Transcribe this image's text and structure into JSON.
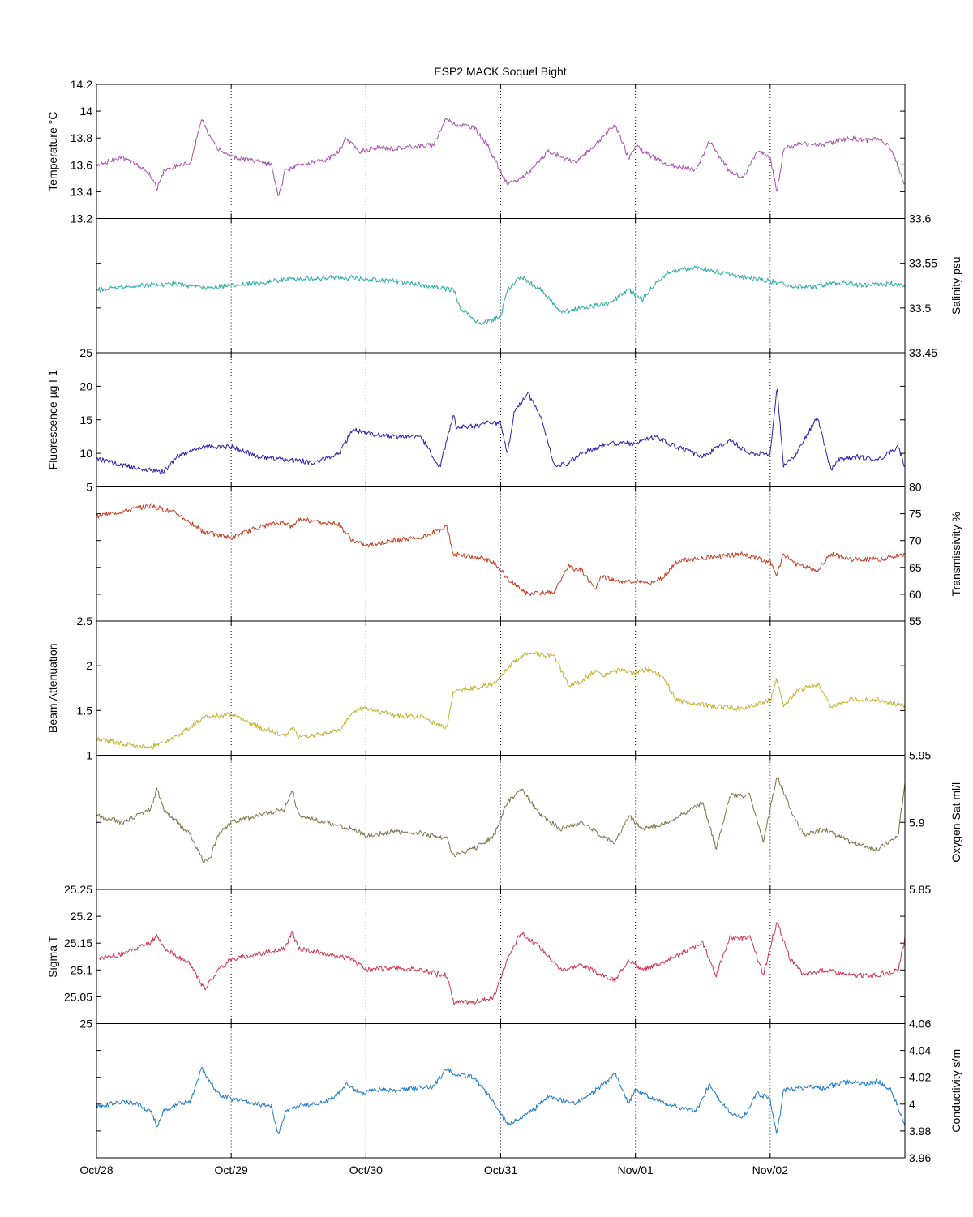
{
  "title": "ESP2 MACK  Soquel Bight",
  "chart_data": {
    "type": "line",
    "title": "ESP2 MACK  Soquel Bight",
    "x_ticks": [
      "Oct/28",
      "Oct/29",
      "Oct/30",
      "Oct/31",
      "Nov/01",
      "Nov/02"
    ],
    "xlim": [
      "Oct/28",
      "Nov/03"
    ],
    "grid": "vertical dotted at day ticks",
    "panels": [
      {
        "name": "Temperature °C",
        "label": "Temperature °C",
        "axis_side": "left",
        "color": "#a84fb0",
        "ylim": [
          13.2,
          14.2
        ],
        "yticks": [
          13.2,
          13.4,
          13.6,
          13.8,
          14,
          14.2
        ],
        "ytick_labels": [
          "13.2",
          "13.4",
          "13.6",
          "13.8",
          "14",
          "14.2"
        ],
        "x": [
          0.0,
          0.1,
          0.2,
          0.3,
          0.4,
          0.45,
          0.5,
          0.6,
          0.7,
          0.78,
          0.82,
          0.9,
          1.0,
          1.1,
          1.2,
          1.3,
          1.35,
          1.4,
          1.5,
          1.6,
          1.7,
          1.8,
          1.85,
          1.95,
          2.05,
          2.1,
          2.2,
          2.3,
          2.4,
          2.5,
          2.6,
          2.65,
          2.7,
          2.8,
          2.9,
          3.0,
          3.05,
          3.15,
          3.25,
          3.35,
          3.45,
          3.55,
          3.65,
          3.7,
          3.75,
          3.85,
          3.95,
          4.0,
          4.05,
          4.15,
          4.25,
          4.35,
          4.45,
          4.55,
          4.65,
          4.7,
          4.8,
          4.9,
          5.0,
          5.05,
          5.1,
          5.2,
          5.3,
          5.4,
          5.5,
          5.6,
          5.7,
          5.8,
          5.9,
          6.0
        ],
        "y": [
          13.6,
          13.63,
          13.65,
          13.6,
          13.52,
          13.42,
          13.55,
          13.6,
          13.62,
          13.95,
          13.85,
          13.72,
          13.66,
          13.64,
          13.62,
          13.6,
          13.35,
          13.55,
          13.6,
          13.62,
          13.63,
          13.7,
          13.8,
          13.7,
          13.72,
          13.73,
          13.72,
          13.73,
          13.74,
          13.75,
          13.95,
          13.9,
          13.9,
          13.88,
          13.75,
          13.55,
          13.45,
          13.5,
          13.58,
          13.7,
          13.66,
          13.62,
          13.7,
          13.75,
          13.8,
          13.9,
          13.65,
          13.75,
          13.7,
          13.65,
          13.6,
          13.58,
          13.56,
          13.78,
          13.62,
          13.55,
          13.5,
          13.7,
          13.66,
          13.4,
          13.72,
          13.75,
          13.76,
          13.75,
          13.78,
          13.8,
          13.78,
          13.8,
          13.72,
          13.45
        ]
      },
      {
        "name": "Salinity psu",
        "label": "Salinity psu",
        "axis_side": "right",
        "color": "#2aa9a9",
        "ylim": [
          33.45,
          33.6
        ],
        "yticks": [
          33.45,
          33.5,
          33.55,
          33.6
        ],
        "ytick_labels": [
          "33.45",
          "33.5",
          "33.55",
          "33.6"
        ],
        "x": [
          0.0,
          0.3,
          0.6,
          0.8,
          1.0,
          1.3,
          1.5,
          1.8,
          2.0,
          2.2,
          2.4,
          2.65,
          2.7,
          2.85,
          3.0,
          3.05,
          3.15,
          3.3,
          3.45,
          3.6,
          3.8,
          3.95,
          4.05,
          4.15,
          4.25,
          4.45,
          4.6,
          4.8,
          5.0,
          5.15,
          5.3,
          5.5,
          5.7,
          5.9,
          6.0
        ],
        "y": [
          33.52,
          33.525,
          33.527,
          33.522,
          33.525,
          33.53,
          33.533,
          33.534,
          33.532,
          33.53,
          33.526,
          33.52,
          33.5,
          33.482,
          33.49,
          33.52,
          33.535,
          33.52,
          33.495,
          33.5,
          33.505,
          33.52,
          33.51,
          33.528,
          33.54,
          33.546,
          33.54,
          33.535,
          33.53,
          33.525,
          33.523,
          33.528,
          33.525,
          33.527,
          33.525
        ]
      },
      {
        "name": "Fluorescence µg l-1",
        "label": "Fluorescence µg l-1",
        "axis_side": "left",
        "color": "#2a1eb0",
        "ylim": [
          5,
          25
        ],
        "yticks": [
          5,
          10,
          15,
          20,
          25
        ],
        "ytick_labels": [
          "5",
          "10",
          "15",
          "20",
          "25"
        ],
        "x": [
          0.0,
          0.2,
          0.4,
          0.5,
          0.6,
          0.8,
          1.0,
          1.2,
          1.4,
          1.5,
          1.6,
          1.8,
          1.9,
          2.0,
          2.2,
          2.4,
          2.55,
          2.65,
          2.67,
          2.8,
          2.9,
          3.0,
          3.05,
          3.1,
          3.2,
          3.3,
          3.4,
          3.5,
          3.6,
          3.8,
          4.0,
          4.15,
          4.3,
          4.5,
          4.7,
          4.85,
          5.0,
          5.05,
          5.1,
          5.2,
          5.35,
          5.45,
          5.5,
          5.65,
          5.8,
          5.95,
          6.0
        ],
        "y": [
          9.2,
          8.2,
          7.5,
          7.2,
          9.5,
          11.0,
          11.0,
          9.5,
          9.0,
          9.0,
          8.5,
          10.0,
          13.5,
          13.0,
          12.5,
          12.5,
          8.0,
          16.0,
          14.0,
          14.0,
          14.5,
          14.5,
          10.0,
          16.0,
          19.0,
          15.5,
          8.0,
          8.5,
          10.0,
          11.5,
          11.5,
          12.5,
          11.0,
          9.5,
          12.0,
          10.0,
          10.0,
          20.0,
          8.0,
          10.0,
          15.5,
          7.5,
          9.0,
          9.5,
          9.0,
          11.0,
          8.0
        ]
      },
      {
        "name": "Transmissivity %",
        "label": "Transmissivity %",
        "axis_side": "right",
        "color": "#c43a1e",
        "ylim": [
          55,
          80
        ],
        "yticks": [
          55,
          60,
          65,
          70,
          75,
          80
        ],
        "ytick_labels": [
          "55",
          "60",
          "65",
          "70",
          "75",
          "80"
        ],
        "x": [
          0.0,
          0.2,
          0.4,
          0.6,
          0.8,
          1.0,
          1.2,
          1.4,
          1.45,
          1.5,
          1.8,
          1.9,
          2.0,
          2.2,
          2.4,
          2.6,
          2.65,
          2.8,
          2.95,
          3.05,
          3.2,
          3.4,
          3.5,
          3.6,
          3.7,
          3.75,
          3.9,
          4.0,
          4.1,
          4.2,
          4.3,
          4.4,
          4.6,
          4.8,
          5.0,
          5.05,
          5.1,
          5.2,
          5.35,
          5.45,
          5.6,
          5.8,
          6.0
        ],
        "y": [
          74.5,
          75.5,
          76.5,
          75.0,
          71.5,
          70.5,
          72.5,
          73.5,
          72.5,
          74.0,
          73.0,
          70.0,
          69.0,
          70.0,
          70.5,
          72.5,
          67.5,
          67.0,
          66.0,
          63.0,
          60.0,
          60.5,
          65.0,
          64.5,
          61.0,
          63.5,
          62.0,
          62.5,
          62.0,
          63.0,
          66.0,
          66.5,
          67.0,
          67.5,
          66.0,
          63.5,
          67.5,
          65.5,
          64.5,
          67.5,
          66.5,
          66.5,
          67.5
        ]
      },
      {
        "name": "Beam Attenuation",
        "label": "Beam Attenuation",
        "axis_side": "left",
        "color": "#c4b02a",
        "ylim": [
          1,
          2.5
        ],
        "yticks": [
          1,
          1.5,
          2,
          2.5
        ],
        "ytick_labels": [
          "1",
          "1.5",
          "2",
          "2.5"
        ],
        "x": [
          0.0,
          0.2,
          0.4,
          0.6,
          0.8,
          1.0,
          1.2,
          1.4,
          1.45,
          1.5,
          1.8,
          1.9,
          2.0,
          2.2,
          2.4,
          2.6,
          2.65,
          2.8,
          2.95,
          3.05,
          3.2,
          3.4,
          3.5,
          3.6,
          3.7,
          3.75,
          3.9,
          4.0,
          4.1,
          4.2,
          4.3,
          4.4,
          4.6,
          4.8,
          5.0,
          5.05,
          5.1,
          5.2,
          5.35,
          5.45,
          5.6,
          5.8,
          6.0
        ],
        "y": [
          1.18,
          1.13,
          1.08,
          1.22,
          1.42,
          1.46,
          1.32,
          1.22,
          1.32,
          1.2,
          1.27,
          1.48,
          1.52,
          1.45,
          1.43,
          1.3,
          1.72,
          1.75,
          1.8,
          1.98,
          2.15,
          2.1,
          1.78,
          1.82,
          1.95,
          1.88,
          1.96,
          1.92,
          1.96,
          1.88,
          1.62,
          1.58,
          1.55,
          1.52,
          1.62,
          1.85,
          1.55,
          1.72,
          1.8,
          1.55,
          1.62,
          1.62,
          1.55
        ]
      },
      {
        "name": "Oxygen Sat ml/l",
        "label": "Oxygen Sat ml/l",
        "axis_side": "right",
        "color": "#7a7346",
        "ylim": [
          5.85,
          5.95
        ],
        "yticks": [
          5.85,
          5.9,
          5.95
        ],
        "ytick_labels": [
          "5.85",
          "5.9",
          "5.95"
        ],
        "x": [
          0.0,
          0.2,
          0.4,
          0.45,
          0.5,
          0.7,
          0.8,
          0.85,
          0.9,
          1.0,
          1.2,
          1.4,
          1.45,
          1.5,
          1.7,
          1.9,
          2.0,
          2.2,
          2.4,
          2.6,
          2.65,
          2.8,
          2.95,
          3.05,
          3.15,
          3.3,
          3.45,
          3.6,
          3.75,
          3.85,
          3.95,
          4.05,
          4.25,
          4.5,
          4.6,
          4.7,
          4.85,
          4.95,
          5.05,
          5.15,
          5.25,
          5.4,
          5.6,
          5.8,
          5.95,
          6.0
        ],
        "y": [
          5.905,
          5.9,
          5.91,
          5.925,
          5.91,
          5.89,
          5.87,
          5.875,
          5.89,
          5.9,
          5.905,
          5.91,
          5.925,
          5.905,
          5.9,
          5.895,
          5.89,
          5.893,
          5.892,
          5.888,
          5.875,
          5.88,
          5.89,
          5.915,
          5.925,
          5.905,
          5.895,
          5.9,
          5.89,
          5.885,
          5.905,
          5.895,
          5.9,
          5.915,
          5.88,
          5.92,
          5.92,
          5.885,
          5.935,
          5.91,
          5.89,
          5.895,
          5.885,
          5.88,
          5.89,
          5.93
        ]
      },
      {
        "name": "Sigma T",
        "label": "Sigma T",
        "axis_side": "left",
        "color": "#d0324f",
        "ylim": [
          25,
          25.25
        ],
        "yticks": [
          25,
          25.05,
          25.1,
          25.15,
          25.2,
          25.25
        ],
        "ytick_labels": [
          "25",
          "25.05",
          "25.1",
          "25.15",
          "25.2",
          "25.25"
        ],
        "x": [
          0.0,
          0.2,
          0.4,
          0.45,
          0.5,
          0.7,
          0.8,
          0.85,
          0.9,
          1.0,
          1.2,
          1.4,
          1.45,
          1.5,
          1.7,
          1.9,
          2.0,
          2.2,
          2.4,
          2.6,
          2.65,
          2.8,
          2.95,
          3.05,
          3.15,
          3.3,
          3.45,
          3.6,
          3.75,
          3.85,
          3.95,
          4.05,
          4.25,
          4.5,
          4.6,
          4.7,
          4.85,
          4.95,
          5.05,
          5.15,
          5.25,
          5.4,
          5.6,
          5.8,
          5.95,
          6.0
        ],
        "y": [
          25.12,
          25.13,
          25.15,
          25.165,
          25.14,
          25.11,
          25.065,
          25.08,
          25.1,
          25.12,
          25.13,
          25.14,
          25.17,
          25.14,
          25.13,
          25.12,
          25.1,
          25.105,
          25.1,
          25.09,
          25.04,
          25.04,
          25.05,
          25.12,
          25.17,
          25.14,
          25.1,
          25.11,
          25.09,
          25.08,
          25.12,
          25.1,
          25.12,
          25.15,
          25.09,
          25.16,
          25.16,
          25.09,
          25.19,
          25.12,
          25.09,
          25.1,
          25.09,
          25.09,
          25.1,
          25.16
        ]
      },
      {
        "name": "Conductivity s/m",
        "label": "Conductivity s/m",
        "axis_side": "right",
        "color": "#1a78c8",
        "ylim": [
          3.96,
          4.06
        ],
        "yticks": [
          3.96,
          3.98,
          4,
          4.02,
          4.04,
          4.06
        ],
        "ytick_labels": [
          "3.96",
          "3.98",
          "4",
          "4.02",
          "4.04",
          "4.06"
        ],
        "x": [
          0.0,
          0.1,
          0.2,
          0.3,
          0.4,
          0.45,
          0.5,
          0.6,
          0.7,
          0.78,
          0.82,
          0.9,
          1.0,
          1.1,
          1.2,
          1.3,
          1.35,
          1.4,
          1.5,
          1.6,
          1.7,
          1.8,
          1.85,
          1.95,
          2.05,
          2.1,
          2.2,
          2.3,
          2.4,
          2.5,
          2.6,
          2.65,
          2.7,
          2.8,
          2.9,
          3.0,
          3.05,
          3.15,
          3.25,
          3.35,
          3.45,
          3.55,
          3.65,
          3.7,
          3.75,
          3.85,
          3.95,
          4.0,
          4.05,
          4.15,
          4.25,
          4.35,
          4.45,
          4.55,
          4.65,
          4.7,
          4.8,
          4.9,
          5.0,
          5.05,
          5.1,
          5.2,
          5.3,
          5.4,
          5.5,
          5.6,
          5.7,
          5.8,
          5.9,
          6.0
        ],
        "y": [
          3.999,
          4.0,
          4.002,
          4.0,
          3.995,
          3.984,
          3.995,
          4.0,
          4.002,
          4.027,
          4.02,
          4.008,
          4.004,
          4.002,
          4.0,
          3.998,
          3.977,
          3.994,
          3.999,
          4.0,
          4.002,
          4.008,
          4.015,
          4.008,
          4.01,
          4.011,
          4.01,
          4.011,
          4.012,
          4.013,
          4.027,
          4.022,
          4.022,
          4.02,
          4.008,
          3.993,
          3.985,
          3.99,
          3.996,
          4.006,
          4.003,
          4.0,
          4.006,
          4.01,
          4.014,
          4.022,
          4.0,
          4.012,
          4.008,
          4.003,
          3.999,
          3.997,
          3.995,
          4.015,
          4.0,
          3.994,
          3.99,
          4.008,
          4.004,
          3.977,
          4.01,
          4.012,
          4.013,
          4.012,
          4.015,
          4.017,
          4.015,
          4.017,
          4.01,
          3.985
        ]
      }
    ]
  }
}
